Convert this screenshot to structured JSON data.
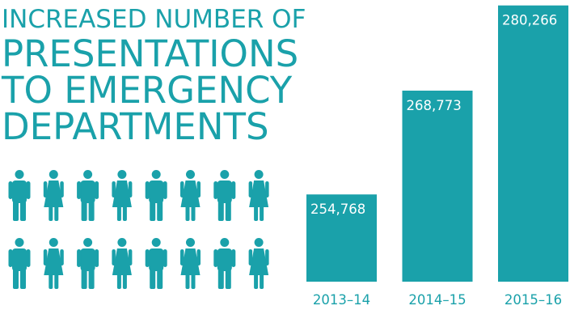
{
  "headline": {
    "line1": "INCREASED NUMBER OF",
    "line2": "PRESENTATIONS",
    "line3": "TO EMERGENCY",
    "line4": "DEPARTMENTS"
  },
  "colors": {
    "accent": "#1aa1aa",
    "background": "#ffffff"
  },
  "people_icons": {
    "rows": 2,
    "per_row": 8,
    "pattern": [
      "male-person-icon",
      "female-person-icon"
    ]
  },
  "chart_data": {
    "type": "bar",
    "categories": [
      "2013–14",
      "2014–15",
      "2015–16"
    ],
    "values": [
      254768,
      268773,
      280266
    ],
    "value_labels": [
      "254,768",
      "268,773",
      "280,266"
    ],
    "title": "",
    "xlabel": "",
    "ylabel": "",
    "ylim": [
      243000,
      281000
    ],
    "grid": false,
    "legend": "none"
  }
}
